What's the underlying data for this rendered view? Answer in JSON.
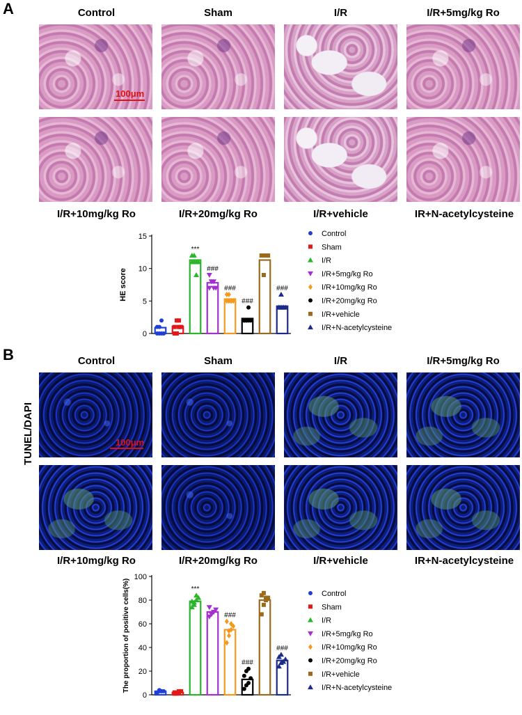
{
  "panel_a": {
    "letter": "A",
    "top_labels": [
      "Control",
      "Sham",
      "I/R",
      "I/R+5mg/kg Ro"
    ],
    "bottom_labels": [
      "I/R+10mg/kg Ro",
      "I/R+20mg/kg Ro",
      "I/R+vehicle",
      "IR+N-acetylcysteine"
    ],
    "scale_bar": "100μm"
  },
  "panel_b": {
    "letter": "B",
    "top_labels": [
      "Control",
      "Sham",
      "I/R",
      "I/R+5mg/kg Ro"
    ],
    "bottom_labels": [
      "I/R+10mg/kg Ro",
      "I/R+20mg/kg Ro",
      "I/R+vehicle",
      "IR+N-acetylcysteine"
    ],
    "scale_bar": "100μm",
    "side_label": "TUNEL/DAPI"
  },
  "chart_data": [
    {
      "type": "bar",
      "ylabel": "HE score",
      "ylim": [
        0,
        15
      ],
      "yticks": [
        "0",
        "5",
        "10",
        "15"
      ],
      "categories": [
        "Control",
        "Sham",
        "I/R",
        "I/R+5mg/kg Ro",
        "I/R+10mg/kg Ro",
        "I/R+20mg/kg Ro",
        "I/R+vehicle",
        "I/R+N-acetylcysteine"
      ],
      "values": [
        0.9,
        1.1,
        11.3,
        7.8,
        5.3,
        2.3,
        11.3,
        4.2
      ],
      "points": [
        [
          0,
          0,
          0,
          0,
          1,
          1,
          2
        ],
        [
          0,
          0,
          1,
          1,
          1,
          2,
          2
        ],
        [
          11,
          11,
          11,
          11,
          12,
          12,
          9
        ],
        [
          9,
          8,
          8,
          7,
          7,
          8,
          7
        ],
        [
          6,
          5,
          5,
          5,
          5,
          6,
          5
        ],
        [
          2,
          2,
          2,
          2,
          2,
          2,
          4
        ],
        [
          12,
          12,
          12,
          12,
          12,
          9,
          12
        ],
        [
          4,
          4,
          4,
          4,
          4,
          6,
          4
        ]
      ],
      "annotations": [
        "",
        "",
        "***",
        "###",
        "###",
        "###",
        "",
        "###"
      ],
      "legend": [
        "Control",
        "Sham",
        "I/R",
        "I/R+5mg/kg Ro",
        "I/R+10mg/kg Ro",
        "I/R+20mg/kg Ro",
        "I/R+vehicle",
        "I/R+N-acetylcysteine"
      ],
      "colors": [
        "#1f3fd6",
        "#e01a1a",
        "#2bb52b",
        "#a42fd0",
        "#f39a1e",
        "#000000",
        "#9a6b1c",
        "#1c2a8a"
      ],
      "legend_position": "right"
    },
    {
      "type": "bar",
      "ylabel": "The proportion of positive cells(%)",
      "ylim": [
        0,
        100
      ],
      "yticks": [
        "0",
        "20",
        "40",
        "60",
        "80",
        "100"
      ],
      "categories": [
        "Control",
        "Sham",
        "I/R",
        "I/R+5mg/kg Ro",
        "I/R+10mg/kg Ro",
        "I/R+20mg/kg Ro",
        "I/R+vehicle",
        "I/R+N-acetylcysteine"
      ],
      "values": [
        3,
        2,
        79,
        70,
        55,
        13,
        80,
        29
      ],
      "points": [
        [
          2,
          3,
          3,
          3,
          2,
          4,
          3
        ],
        [
          1,
          2,
          2,
          3,
          2,
          1,
          3
        ],
        [
          74,
          78,
          80,
          82,
          79,
          76,
          84
        ],
        [
          66,
          69,
          70,
          72,
          74,
          68,
          70
        ],
        [
          44,
          50,
          55,
          58,
          62,
          54,
          60
        ],
        [
          5,
          8,
          10,
          14,
          16,
          20,
          22
        ],
        [
          68,
          76,
          80,
          82,
          84,
          86,
          82
        ],
        [
          24,
          27,
          28,
          30,
          32,
          34,
          28
        ]
      ],
      "annotations": [
        "",
        "",
        "***",
        "",
        "###",
        "###",
        "",
        "###"
      ],
      "legend": [
        "Control",
        "Sham",
        "I/R",
        "I/R+5mg/kg Ro",
        "I/R+10mg/kg Ro",
        "I/R+20mg/kg Ro",
        "I/R+vehicle",
        "I/R+N-acetylcysteine"
      ],
      "colors": [
        "#1f3fd6",
        "#e01a1a",
        "#2bb52b",
        "#a42fd0",
        "#f39a1e",
        "#000000",
        "#9a6b1c",
        "#1c2a8a"
      ],
      "legend_position": "right"
    }
  ]
}
